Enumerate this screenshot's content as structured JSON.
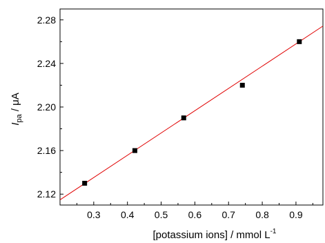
{
  "chart_data": {
    "type": "scatter",
    "title": "",
    "xlabel": "[potassium ions] / mmol L",
    "xlabel_superscript": "-1",
    "ylabel_main": "I",
    "ylabel_subscript": "pa",
    "ylabel_unit": " / μA",
    "xlim": [
      0.2,
      0.98
    ],
    "ylim": [
      2.11,
      2.29
    ],
    "x_ticks": [
      0.3,
      0.4,
      0.5,
      0.6,
      0.7,
      0.8,
      0.9
    ],
    "x_tick_labels": [
      "0.3",
      "0.4",
      "0.5",
      "0.6",
      "0.7",
      "0.8",
      "0.9"
    ],
    "y_ticks": [
      2.12,
      2.16,
      2.2,
      2.24,
      2.28
    ],
    "y_tick_labels": [
      "2.12",
      "2.16",
      "2.20",
      "2.24",
      "2.28"
    ],
    "grid": false,
    "series": [
      {
        "type": "scatter",
        "color": "#000000",
        "marker": "square",
        "x": [
          0.273,
          0.422,
          0.567,
          0.741,
          0.91
        ],
        "y": [
          2.13,
          2.16,
          2.19,
          2.22,
          2.26
        ]
      },
      {
        "type": "line",
        "color": "#e00000",
        "fit": "linear",
        "slope": 0.2045,
        "intercept": 2.0739
      }
    ]
  }
}
